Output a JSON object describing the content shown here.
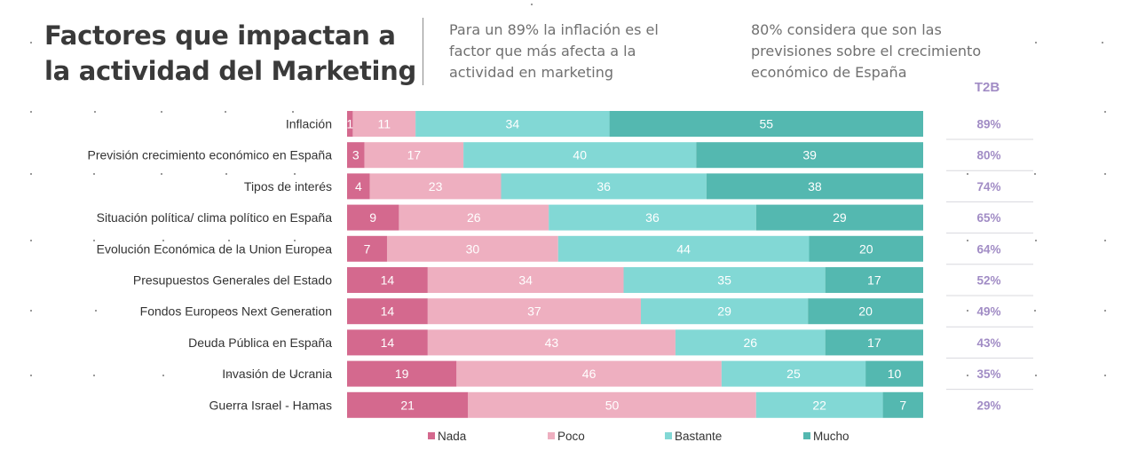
{
  "header": {
    "title": "Factores que impactan a la actividad del Marketing",
    "note_1": "Para un 89% la inflación es el factor que más afecta a la actividad en marketing",
    "note_2": "80% considera que son las previsiones sobre el crecimiento económico de España"
  },
  "colors": {
    "Nada": "#d4698e",
    "Poco": "#eeafc0",
    "Bastante": "#82d8d5",
    "Mucho": "#54b8b0",
    "t2b": "#a18cc5"
  },
  "chart_data": {
    "type": "bar",
    "orientation": "horizontal",
    "stacked": true,
    "categories": [
      "Inflación",
      "Previsión crecimiento económico en España",
      "Tipos de interés",
      "Situación política/ clima político en España",
      "Evolución Económica de la Union Europea",
      "Presupuestos Generales del Estado",
      "Fondos Europeos Next Generation",
      "Deuda Pública en España",
      "Invasión de Ucrania",
      "Guerra Israel - Hamas"
    ],
    "series": [
      {
        "name": "Nada",
        "values": [
          1,
          3,
          4,
          9,
          7,
          14,
          14,
          14,
          19,
          21
        ]
      },
      {
        "name": "Poco",
        "values": [
          11,
          17,
          23,
          26,
          30,
          34,
          37,
          43,
          46,
          50
        ]
      },
      {
        "name": "Bastante",
        "values": [
          34,
          40,
          36,
          36,
          44,
          35,
          29,
          26,
          25,
          22
        ]
      },
      {
        "name": "Mucho",
        "values": [
          55,
          39,
          38,
          29,
          20,
          17,
          20,
          17,
          10,
          7
        ]
      }
    ],
    "t2b_header": "T2B",
    "t2b": [
      "89%",
      "80%",
      "74%",
      "65%",
      "64%",
      "52%",
      "49%",
      "43%",
      "35%",
      "29%"
    ],
    "legend_position": "bottom",
    "grid": false
  }
}
